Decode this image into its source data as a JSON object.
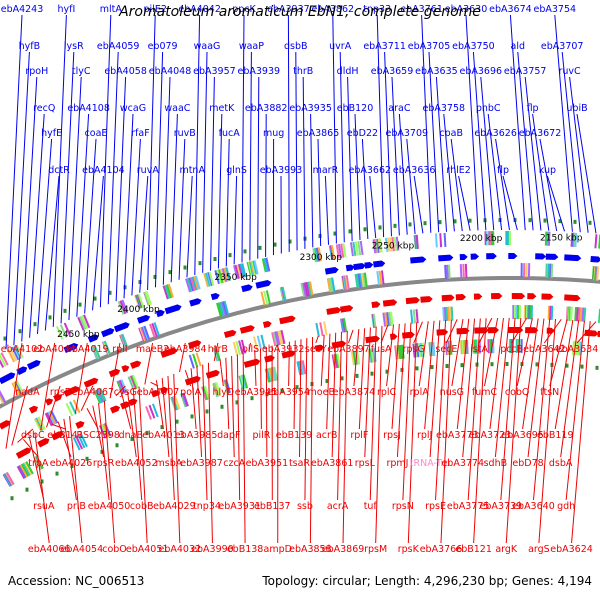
{
  "title": "Aromatoleum aromaticum EbN1, complete genome",
  "accession": "Accession: NC_006513",
  "topology": "Topology: circular; Length: 4,296,230 bp; Genes: 4,194",
  "colors": {
    "top_strand": "#0000ee",
    "bottom_strand": "#ee0000",
    "rna": "#ff88cc",
    "backbone": "#888888",
    "tick": "#2e8b2e"
  },
  "ticks": [
    "2450 kbp",
    "2400 kbp",
    "2350 kbp",
    "2300 kbp",
    "2250 kbp",
    "2200 kbp",
    "2150 kbp"
  ],
  "top_labels": [
    "ebA4243",
    "hyfB",
    "rpoH",
    "recQ",
    "hyfE",
    "dctR",
    "hyfI",
    "lysR",
    "tlyC",
    "ebA4108",
    "coaE",
    "ebA4104",
    "mltA",
    "ebA4059",
    "ebA4058",
    "wcaG",
    "rfaF",
    "ruvA",
    "pilE2",
    "eb079",
    "ebA4048",
    "waaC",
    "ruvB",
    "mtnA",
    "ebA4042",
    "waaG",
    "ebA3957",
    "metK",
    "fucA",
    "glnS",
    "ppcK",
    "waaP",
    "ebA3939",
    "ebA3882",
    "mug",
    "ebA3993",
    "ebA3937",
    "dsbB",
    "thrB",
    "ebA3935",
    "ebA3865",
    "marR",
    "ebA3862",
    "uvrA",
    "dldH",
    "ebB120",
    "ebD22",
    "ebA3662",
    "tnp33",
    "ebA3711",
    "ebA3659",
    "araC",
    "ebA3709",
    "ebA3636",
    "ebA3761",
    "ebA3705",
    "ebA3635",
    "ebA3758",
    "cpaB",
    "rhlE2",
    "ebA3630",
    "ebA3750",
    "ebA3696",
    "pnbC",
    "ebA3626",
    "flp",
    "ebA3674",
    "ald",
    "ebA3757",
    "flp",
    "ebA3672",
    "kup",
    "ebA3754",
    "ebA3707",
    "ruvC",
    "ubiB"
  ],
  "bottom_labels": [
    "ebA4102",
    "nadA",
    "dsbC",
    "trpA",
    "rsuA",
    "ebA4066",
    "ebA4044",
    "rpsF",
    "ebB141",
    "ebA4026",
    "priB",
    "ebA4054",
    "ebA4019",
    "ebA4067",
    "RSC2398",
    "rpsR",
    "ebA4050",
    "cobO",
    "rplI",
    "cysG",
    "dnaB",
    "ebA4052",
    "cobB",
    "ebA4051",
    "maeB2",
    "ebA4007",
    "ebA4013",
    "msbA",
    "ebA4029",
    "ebA4032",
    "ebA3984",
    "polA",
    "ebA3985",
    "ebA3987",
    "tnp34",
    "ebA3990",
    "htrB",
    "hlyD",
    "dapF",
    "czcA",
    "ebA3931",
    "ebB138",
    "pilS",
    "ebA3945",
    "pilR",
    "ebA3951",
    "ebB137",
    "ampD",
    "ebA3932",
    "ebA3954",
    "ebB139",
    "tsaR",
    "ssb",
    "ebA3858",
    "secY",
    "moeB",
    "acrB",
    "ebA3861",
    "acrA",
    "ebA3869",
    "ebA3897",
    "ebA3874",
    "rplF",
    "rpsL",
    "tuf",
    "rpsM",
    "fusA",
    "rplC",
    "rpsJ",
    "rpmJ",
    "rpsN",
    "rpsK",
    "rpsG",
    "rplA",
    "rplJ",
    "tRNA-Trp",
    "rpsE",
    "ebA3766",
    "secE",
    "nusG",
    "ebA3773",
    "ebA3774",
    "ebA3775",
    "ebB121",
    "istA",
    "fumC",
    "ebA3723",
    "sdhB",
    "ebA3739",
    "argK",
    "pccB",
    "cobQ",
    "ebA3695",
    "ebD78",
    "ebA3640",
    "argS",
    "ebA3642",
    "ftsN",
    "ebB119",
    "dsbA",
    "gdh",
    "ebA3624",
    "ebA3634"
  ]
}
